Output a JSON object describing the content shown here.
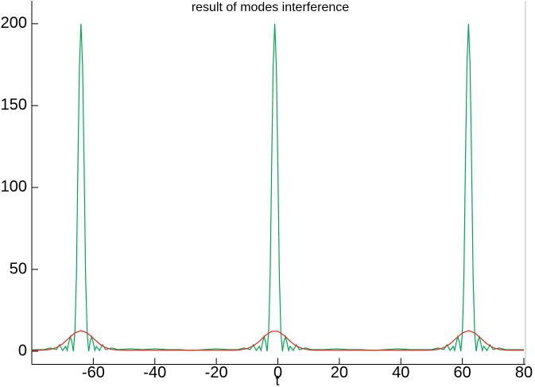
{
  "chart_data": {
    "type": "line",
    "title": "result of modes interference",
    "x_label": "t",
    "xlim": [
      -80,
      80
    ],
    "ylim": [
      -8,
      214
    ],
    "xticks": [
      -60,
      -40,
      -20,
      0,
      20,
      40,
      60,
      80
    ],
    "yticks": [
      0,
      50,
      100,
      150,
      200
    ],
    "series": [
      {
        "color": "#00a651",
        "x": [
          -80,
          -78,
          -76,
          -74,
          -72,
          -71,
          -70,
          -69,
          -68.5,
          -68,
          -67.5,
          -67,
          -66.5,
          -66,
          -65.5,
          -65,
          -64.5,
          -64,
          -63.5,
          -63,
          -62.5,
          -62,
          -61.5,
          -61,
          -60.5,
          -60,
          -59.5,
          -59,
          -58,
          -57,
          -56,
          -54,
          -52,
          -48,
          -44,
          -40,
          -36,
          -32,
          -28,
          -24,
          -20,
          -16,
          -13,
          -11,
          -9,
          -8,
          -7,
          -6,
          -5.5,
          -5,
          -4.5,
          -4,
          -3.5,
          -3,
          -2.5,
          -2,
          -1.5,
          -1,
          -0.5,
          0,
          0.5,
          1,
          1.5,
          2,
          2.5,
          3,
          3.5,
          4,
          5,
          6,
          7,
          9,
          11,
          15,
          19,
          23,
          27,
          31,
          35,
          39,
          43,
          47,
          50,
          52,
          54,
          55,
          56,
          57,
          57.5,
          58,
          58.5,
          59,
          59.5,
          60,
          60.5,
          61,
          61.5,
          62,
          62.5,
          63,
          63.5,
          64,
          64.5,
          65,
          65.5,
          66,
          66.5,
          67,
          68,
          69,
          70,
          72,
          74,
          76,
          78,
          80
        ],
        "values": [
          1,
          1,
          1,
          2,
          1,
          4,
          0.5,
          3,
          0.5,
          5,
          9,
          6,
          0,
          11,
          45,
          115,
          175,
          200,
          175,
          115,
          45,
          11,
          0,
          6,
          9,
          5,
          0.5,
          3,
          0.5,
          4,
          1,
          2,
          1,
          1.5,
          1,
          1.5,
          1,
          1,
          0.5,
          1,
          1.5,
          1,
          1,
          2,
          1,
          4,
          0.5,
          3,
          0.5,
          5,
          9,
          6,
          0,
          11,
          45,
          115,
          175,
          200,
          175,
          115,
          45,
          11,
          0,
          6,
          9,
          5,
          0.5,
          3,
          0.5,
          4,
          1,
          2,
          1,
          1,
          1.5,
          1,
          1,
          0.5,
          1,
          1.5,
          1,
          1,
          1,
          2,
          1,
          4,
          0.5,
          3,
          0.5,
          5,
          9,
          6,
          0,
          11,
          45,
          115,
          175,
          200,
          175,
          115,
          45,
          11,
          0,
          6,
          9,
          5,
          0.5,
          3,
          0.5,
          4,
          1,
          2,
          1,
          1,
          1,
          1
        ]
      },
      {
        "color": "#e8261c",
        "x": [
          -80,
          -78,
          -76,
          -74,
          -72,
          -70,
          -68,
          -66,
          -64,
          -62,
          -60,
          -58,
          -56,
          -54,
          -52,
          -50,
          -48,
          -46,
          -44,
          -42,
          -40,
          -38,
          -36,
          -34,
          -32,
          -30,
          -28,
          -26,
          -24,
          -22,
          -20,
          -18,
          -16,
          -14,
          -12,
          -10,
          -8,
          -6,
          -4,
          -2,
          0,
          2,
          4,
          6,
          8,
          10,
          12,
          14,
          16,
          18,
          20,
          22,
          24,
          26,
          28,
          30,
          32,
          34,
          36,
          38,
          40,
          42,
          44,
          46,
          48,
          50,
          52,
          54,
          56,
          58,
          60,
          62,
          64,
          66,
          68,
          70,
          72,
          74,
          76,
          78,
          80
        ],
        "values": [
          0.6,
          0.6,
          0.7,
          1.1,
          2.2,
          4.5,
          7.9,
          11.2,
          12.6,
          11.2,
          7.9,
          4.5,
          2.2,
          1.1,
          0.7,
          0.6,
          0.6,
          0.6,
          0.6,
          0.6,
          0.6,
          0.6,
          0.6,
          0.6,
          0.6,
          0.6,
          0.6,
          0.6,
          0.6,
          0.6,
          0.6,
          0.6,
          0.6,
          0.6,
          0.9,
          1.6,
          3.2,
          6.1,
          9.7,
          12.2,
          12.2,
          9.7,
          6.1,
          3.2,
          1.6,
          0.9,
          0.6,
          0.6,
          0.6,
          0.6,
          0.6,
          0.6,
          0.6,
          0.6,
          0.6,
          0.6,
          0.6,
          0.6,
          0.6,
          0.6,
          0.6,
          0.6,
          0.6,
          0.6,
          0.6,
          0.7,
          1.1,
          2.2,
          4.5,
          7.9,
          11.2,
          12.6,
          11.2,
          7.9,
          4.5,
          2.2,
          1.1,
          0.7,
          0.6,
          0.6,
          0.6
        ]
      }
    ]
  }
}
